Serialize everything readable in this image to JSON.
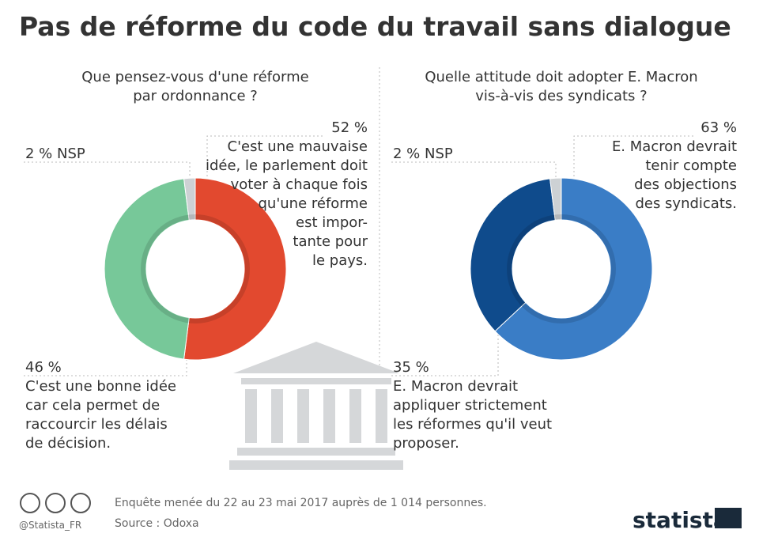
{
  "title": "Pas de réforme du code du travail sans dialogue",
  "chart_data": [
    {
      "type": "donut",
      "title": "Que pensez-vous d'une réforme\npar ordonnance ?",
      "categories": [
        "C'est une mauvaise\nidée, le parlement doit\nvoter à chaque fois\nqu'une réforme\nest impor-\ntante pour\nle pays.",
        "C'est une bonne idée\ncar cela permet de\nraccourcir les délais\nde décision.",
        "NSP"
      ],
      "values": [
        52,
        46,
        2
      ],
      "value_labels": [
        "52 %",
        "46 %",
        "2 %"
      ],
      "colors": [
        "#e2492f",
        "#77c899",
        "#cdd1d4"
      ]
    },
    {
      "type": "donut",
      "title": "Quelle attitude doit adopter E. Macron\nvis-à-vis des syndicats ?",
      "categories": [
        "E. Macron devrait\ntenir compte\ndes objections\ndes syndicats.",
        "E. Macron devrait\nappliquer strictement\nles réformes qu'il veut\nproposer.",
        "NSP"
      ],
      "values": [
        63,
        35,
        2
      ],
      "value_labels": [
        "63 %",
        "35 %",
        "2 %"
      ],
      "colors": [
        "#3a7dc6",
        "#0f4b8c",
        "#cdd1d4"
      ]
    }
  ],
  "footer": {
    "note": "Enquête menée du 22 au 23 mai 2017 auprès de 1 014 personnes.",
    "source": "Source : Odoxa",
    "handle": "@Statista_FR",
    "brand": "statista"
  }
}
